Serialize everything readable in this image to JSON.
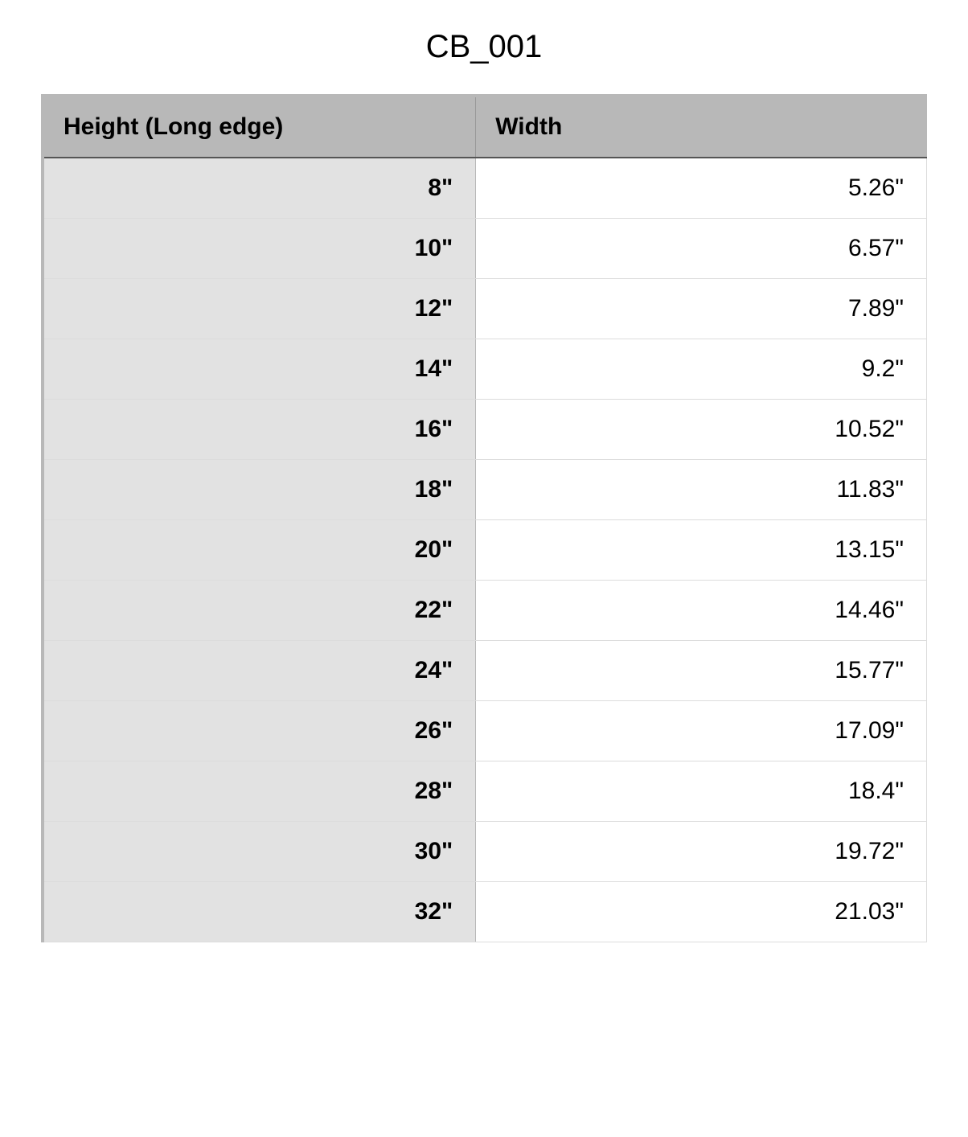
{
  "title": "CB_001",
  "table": {
    "type": "table",
    "columns": [
      {
        "key": "height",
        "label": "Height (Long edge)",
        "align": "right",
        "header_align": "left",
        "header_bg": "#b8b8b8",
        "body_bg": "#e2e2e2",
        "font_weight": "700",
        "width_pct": 49
      },
      {
        "key": "width",
        "label": "Width",
        "align": "right",
        "header_align": "left",
        "header_bg": "#b8b8b8",
        "body_bg": "#ffffff",
        "font_weight": "400",
        "width_pct": 51
      }
    ],
    "rows": [
      {
        "height": "8\"",
        "width": "5.26\""
      },
      {
        "height": "10\"",
        "width": "6.57\""
      },
      {
        "height": "12\"",
        "width": "7.89\""
      },
      {
        "height": "14\"",
        "width": "9.2\""
      },
      {
        "height": "16\"",
        "width": "10.52\""
      },
      {
        "height": "18\"",
        "width": "11.83\""
      },
      {
        "height": "20\"",
        "width": "13.15\""
      },
      {
        "height": "22\"",
        "width": "14.46\""
      },
      {
        "height": "24\"",
        "width": "15.77\""
      },
      {
        "height": "26\"",
        "width": "17.09\""
      },
      {
        "height": "28\"",
        "width": "18.4\""
      },
      {
        "height": "30\"",
        "width": "19.72\""
      },
      {
        "height": "32\"",
        "width": "21.03\""
      }
    ],
    "style": {
      "title_fontsize": 40,
      "header_fontsize": 30,
      "body_fontsize": 30,
      "header_bg": "#b8b8b8",
      "header_text_color": "#000000",
      "body_text_color": "#000000",
      "row_border_color": "#dcdcdc",
      "outer_border_color": "#b8b8b8",
      "header_bottom_border": "#555555",
      "background_color": "#ffffff"
    }
  }
}
